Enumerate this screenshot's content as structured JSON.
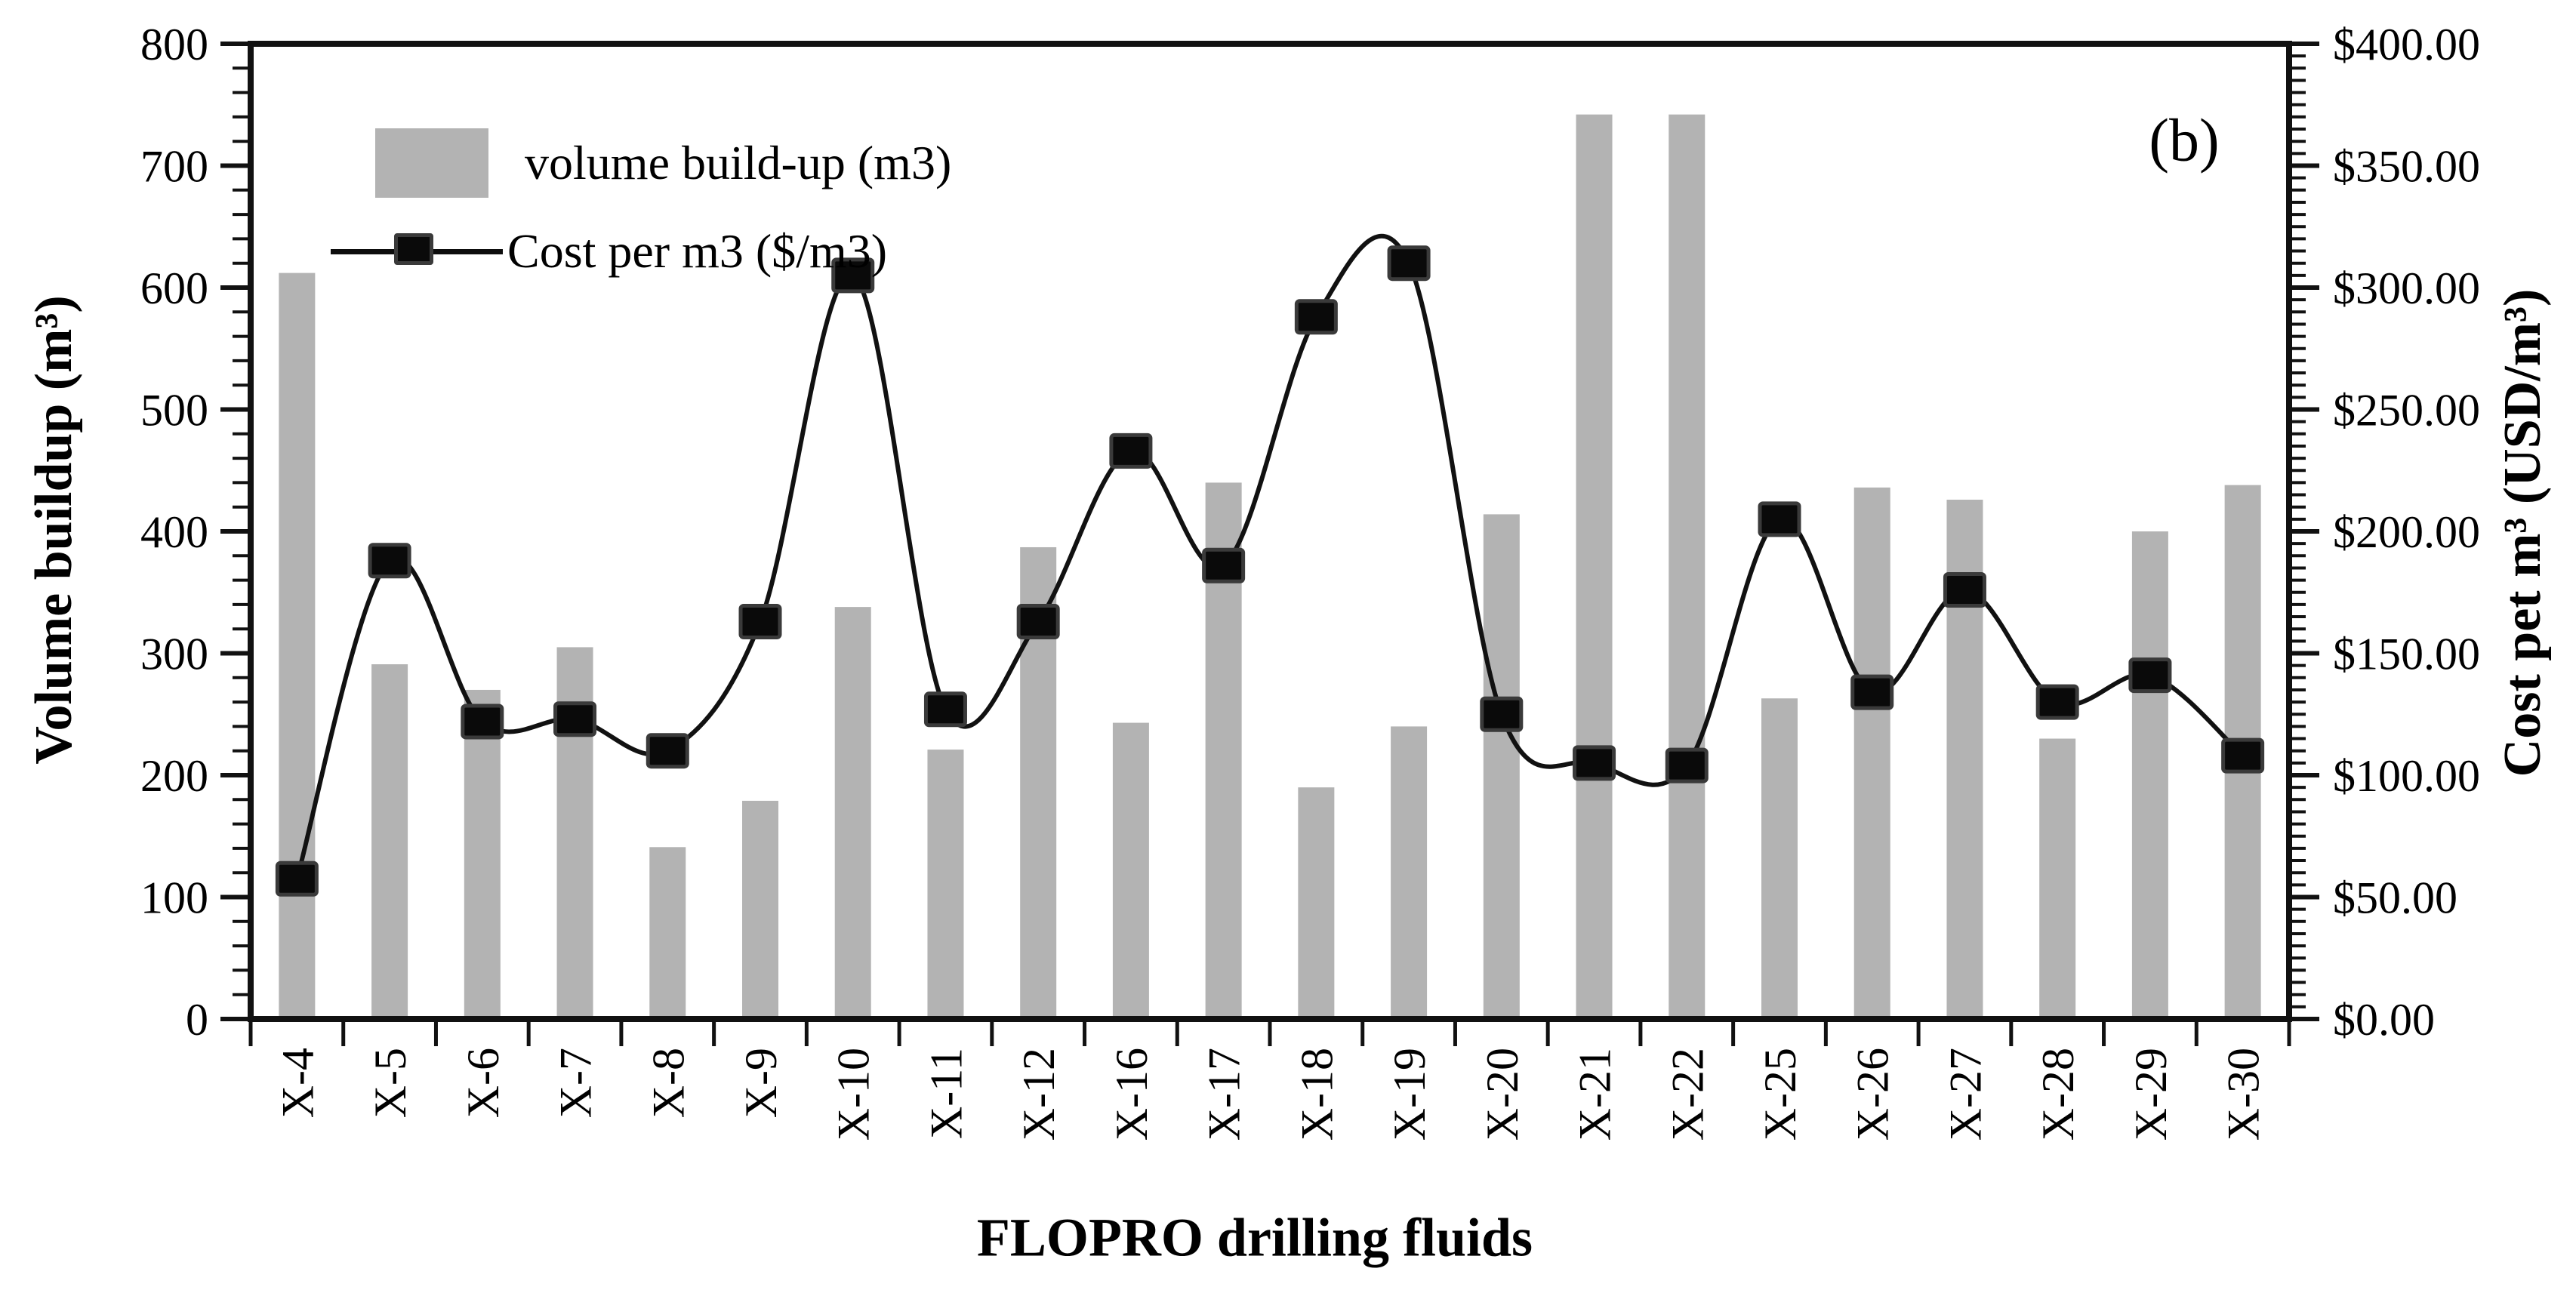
{
  "figure_label": "(b)",
  "legend": {
    "items": [
      {
        "label": "volume build-up (m3)",
        "series": "volume",
        "swatch_color": "#b3b3b3"
      },
      {
        "label": "Cost per m3 ($/m3)",
        "series": "cost",
        "line_color": "#111111",
        "marker": "square"
      }
    ]
  },
  "axes": {
    "left_tick_labels": [
      "800",
      "700",
      "600",
      "500",
      "400",
      "300",
      "200",
      "100",
      "0"
    ],
    "right_tick_labels": [
      "$400.00",
      "$350.00",
      "$300.00",
      "$250.00",
      "$200.00",
      "$150.00",
      "$100.00",
      "$50.00",
      "$0.00"
    ],
    "x_tick_labels": [
      "X-4",
      "X-5",
      "X-6",
      "X-7",
      "X-8",
      "X-9",
      "X-10",
      "X-11",
      "X-12",
      "X-16",
      "X-17",
      "X-18",
      "X-19",
      "X-20",
      "X-21",
      "X-22",
      "X-25",
      "X-26",
      "X-27",
      "X-28",
      "X-29",
      "X-30"
    ]
  },
  "chart_data": {
    "type": "combo-bar-line",
    "title": "",
    "xlabel": "FLOPRO drilling fluids",
    "ylabel_left": "Volume buildup (m³)",
    "ylabel_right": "Cost pet m³ (USD/m³)",
    "ylim_left": [
      0,
      800
    ],
    "ytick_step_left": 100,
    "minor_tick_step_left": 20,
    "ylim_right": [
      0,
      400
    ],
    "ytick_step_right": 50,
    "minor_tick_step_right": 5,
    "grid": false,
    "legend_position": "top-left-inside",
    "categories": [
      "X-4",
      "X-5",
      "X-6",
      "X-7",
      "X-8",
      "X-9",
      "X-10",
      "X-11",
      "X-12",
      "X-16",
      "X-17",
      "X-18",
      "X-19",
      "X-20",
      "X-21",
      "X-22",
      "X-25",
      "X-26",
      "X-27",
      "X-28",
      "X-29",
      "X-30"
    ],
    "series": [
      {
        "name": "volume build-up (m3)",
        "type": "bar",
        "axis": "left",
        "unit": "m3",
        "color": "#b3b3b3",
        "values": [
          612,
          291,
          270,
          305,
          141,
          179,
          338,
          221,
          387,
          243,
          440,
          190,
          240,
          414,
          742,
          742,
          263,
          436,
          426,
          230,
          400,
          438
        ]
      },
      {
        "name": "Cost per m3 ($/m3)",
        "type": "line",
        "axis": "right",
        "unit": "USD/m3",
        "color": "#111111",
        "marker": "square",
        "smooth": true,
        "values": [
          57.5,
          188,
          122,
          123,
          110,
          163,
          305,
          127,
          163,
          233,
          186,
          288,
          310,
          125,
          105,
          104,
          205,
          134,
          176,
          130,
          141,
          108
        ]
      }
    ]
  }
}
